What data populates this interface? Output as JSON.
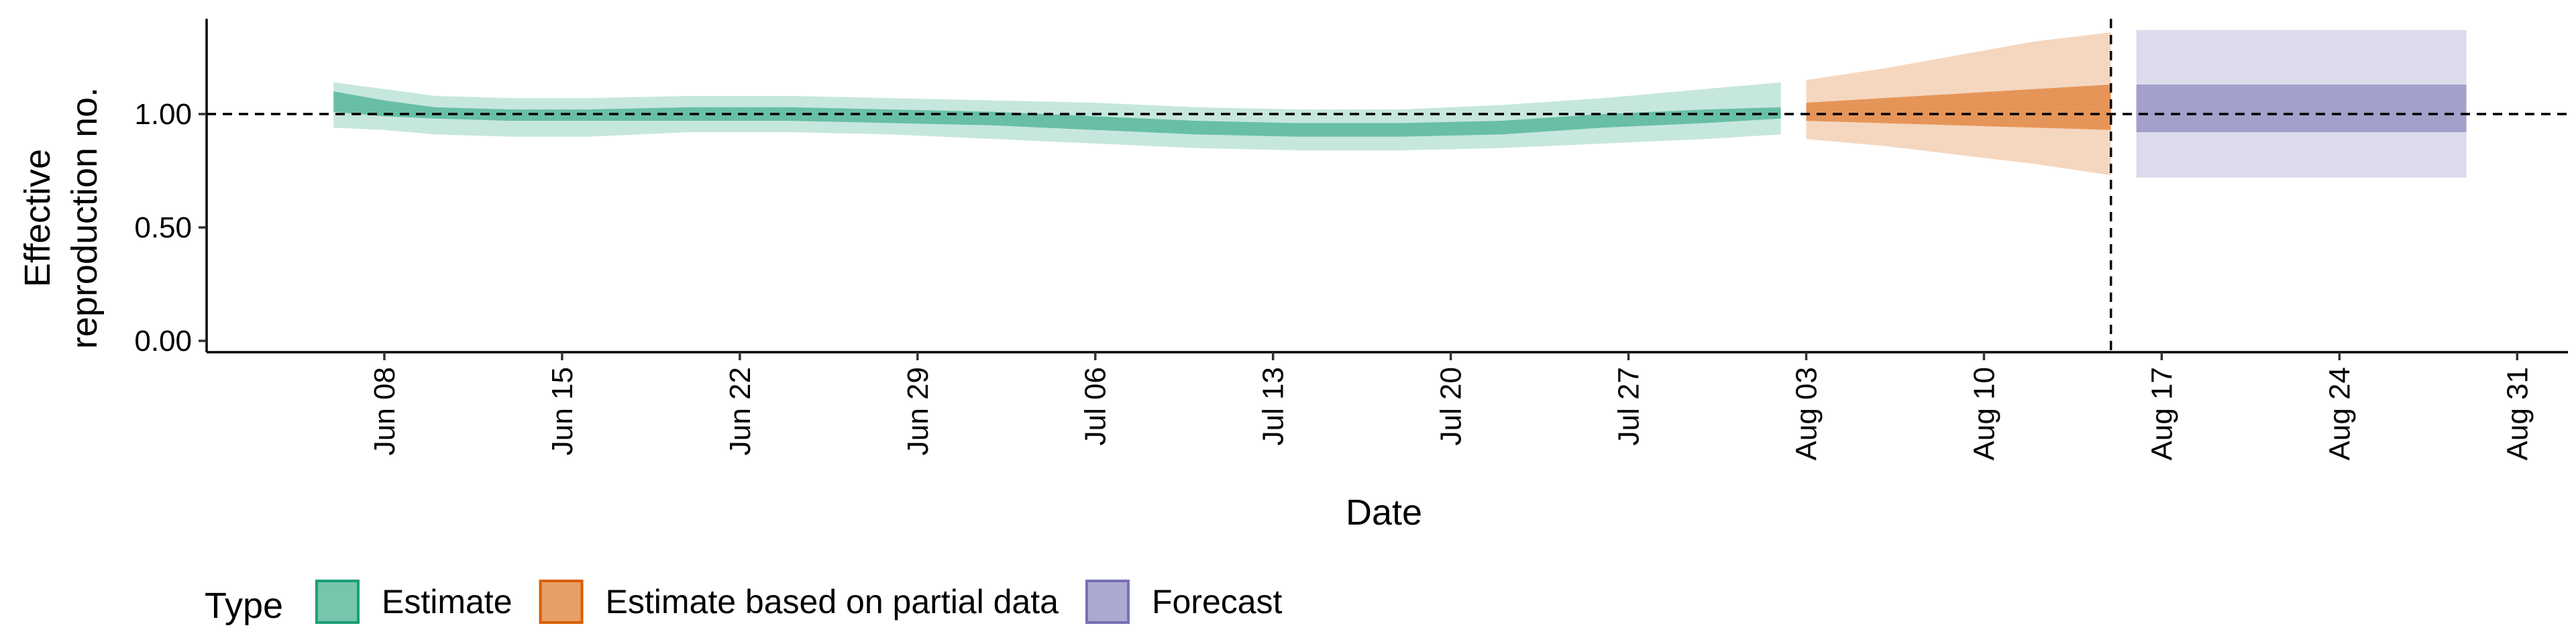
{
  "chart_data": {
    "type": "area",
    "xlabel": "Date",
    "ylabel_lines": [
      "Effective",
      "reproduction no."
    ],
    "legend_title": "Type",
    "x_ticks": [
      {
        "date": "2020-06-08",
        "label": "Jun 08"
      },
      {
        "date": "2020-06-15",
        "label": "Jun 15"
      },
      {
        "date": "2020-06-22",
        "label": "Jun 22"
      },
      {
        "date": "2020-06-29",
        "label": "Jun 29"
      },
      {
        "date": "2020-07-06",
        "label": "Jul 06"
      },
      {
        "date": "2020-07-13",
        "label": "Jul 13"
      },
      {
        "date": "2020-07-20",
        "label": "Jul 20"
      },
      {
        "date": "2020-07-27",
        "label": "Jul 27"
      },
      {
        "date": "2020-08-03",
        "label": "Aug 03"
      },
      {
        "date": "2020-08-10",
        "label": "Aug 10"
      },
      {
        "date": "2020-08-17",
        "label": "Aug 17"
      },
      {
        "date": "2020-08-24",
        "label": "Aug 24"
      },
      {
        "date": "2020-08-31",
        "label": "Aug 31"
      }
    ],
    "y_ticks": [
      {
        "value": 0.0,
        "label": "0.00"
      },
      {
        "value": 0.5,
        "label": "0.50"
      },
      {
        "value": 1.0,
        "label": "1.00"
      }
    ],
    "xlim": [
      "2020-06-01",
      "2020-09-02"
    ],
    "ylim": [
      -0.05,
      1.42
    ],
    "reference_hline": 1.0,
    "reference_vline": "2020-08-15",
    "series": [
      {
        "name": "Estimate",
        "color": "#1B9E77",
        "points": [
          {
            "date": "2020-06-06",
            "lo90": 0.94,
            "lo50": 1.01,
            "hi50": 1.1,
            "hi90": 1.14
          },
          {
            "date": "2020-06-08",
            "lo90": 0.93,
            "lo50": 0.99,
            "hi50": 1.06,
            "hi90": 1.11
          },
          {
            "date": "2020-06-10",
            "lo90": 0.91,
            "lo50": 0.98,
            "hi50": 1.03,
            "hi90": 1.08
          },
          {
            "date": "2020-06-13",
            "lo90": 0.9,
            "lo50": 0.97,
            "hi50": 1.02,
            "hi90": 1.07
          },
          {
            "date": "2020-06-16",
            "lo90": 0.9,
            "lo50": 0.97,
            "hi50": 1.02,
            "hi90": 1.07
          },
          {
            "date": "2020-06-20",
            "lo90": 0.92,
            "lo50": 0.97,
            "hi50": 1.03,
            "hi90": 1.08
          },
          {
            "date": "2020-06-24",
            "lo90": 0.92,
            "lo50": 0.97,
            "hi50": 1.03,
            "hi90": 1.08
          },
          {
            "date": "2020-06-28",
            "lo90": 0.91,
            "lo50": 0.96,
            "hi50": 1.02,
            "hi90": 1.07
          },
          {
            "date": "2020-07-02",
            "lo90": 0.89,
            "lo50": 0.95,
            "hi50": 1.01,
            "hi90": 1.06
          },
          {
            "date": "2020-07-06",
            "lo90": 0.87,
            "lo50": 0.93,
            "hi50": 0.99,
            "hi90": 1.05
          },
          {
            "date": "2020-07-10",
            "lo90": 0.85,
            "lo50": 0.91,
            "hi50": 0.97,
            "hi90": 1.03
          },
          {
            "date": "2020-07-14",
            "lo90": 0.84,
            "lo50": 0.9,
            "hi50": 0.96,
            "hi90": 1.02
          },
          {
            "date": "2020-07-18",
            "lo90": 0.84,
            "lo50": 0.9,
            "hi50": 0.96,
            "hi90": 1.02
          },
          {
            "date": "2020-07-22",
            "lo90": 0.85,
            "lo50": 0.91,
            "hi50": 0.97,
            "hi90": 1.04
          },
          {
            "date": "2020-07-26",
            "lo90": 0.87,
            "lo50": 0.94,
            "hi50": 1.0,
            "hi90": 1.07
          },
          {
            "date": "2020-07-30",
            "lo90": 0.89,
            "lo50": 0.96,
            "hi50": 1.02,
            "hi90": 1.11
          },
          {
            "date": "2020-08-02",
            "lo90": 0.91,
            "lo50": 0.98,
            "hi50": 1.03,
            "hi90": 1.14
          }
        ]
      },
      {
        "name": "Estimate based on partial data",
        "color": "#D95F02",
        "points": [
          {
            "date": "2020-08-03",
            "lo90": 0.89,
            "lo50": 0.97,
            "hi50": 1.05,
            "hi90": 1.15
          },
          {
            "date": "2020-08-06",
            "lo90": 0.86,
            "lo50": 0.96,
            "hi50": 1.07,
            "hi90": 1.2
          },
          {
            "date": "2020-08-09",
            "lo90": 0.82,
            "lo50": 0.95,
            "hi50": 1.09,
            "hi90": 1.26
          },
          {
            "date": "2020-08-12",
            "lo90": 0.78,
            "lo50": 0.94,
            "hi50": 1.11,
            "hi90": 1.32
          },
          {
            "date": "2020-08-15",
            "lo90": 0.73,
            "lo50": 0.93,
            "hi50": 1.13,
            "hi90": 1.36
          }
        ]
      },
      {
        "name": "Forecast",
        "color": "#7570B3",
        "points": [
          {
            "date": "2020-08-16",
            "lo90": 0.72,
            "lo50": 0.92,
            "hi50": 1.13,
            "hi90": 1.37
          },
          {
            "date": "2020-08-29",
            "lo90": 0.72,
            "lo50": 0.92,
            "hi50": 1.13,
            "hi90": 1.37
          }
        ]
      }
    ]
  }
}
